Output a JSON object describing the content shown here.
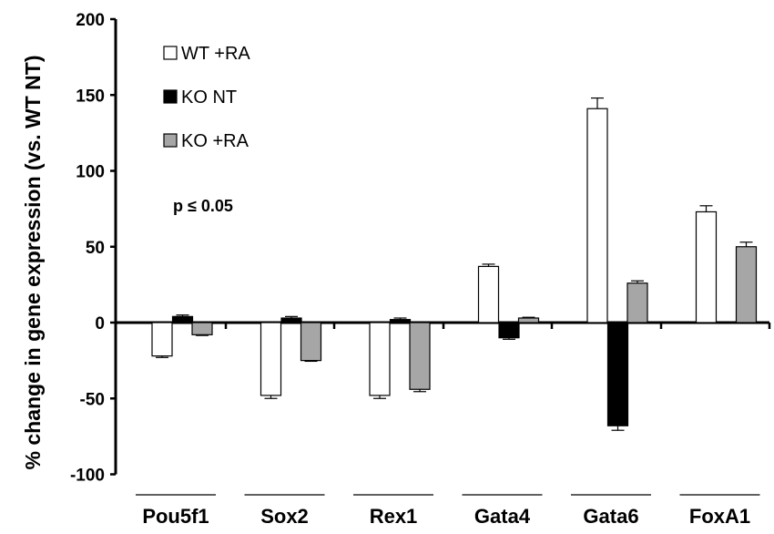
{
  "chart_data": {
    "type": "bar",
    "ylabel": "% change in gene expression (vs. WT NT)",
    "ylim": [
      -100,
      200
    ],
    "yticks": [
      200,
      150,
      100,
      50,
      0,
      -50,
      -100
    ],
    "categories": [
      "Pou5f1",
      "Sox2",
      "Rex1",
      "Gata4",
      "Gata6",
      "FoxA1"
    ],
    "series": [
      {
        "name": "WT +RA",
        "color": "#ffffff",
        "values": [
          -22,
          -48,
          -48,
          37,
          141,
          73
        ],
        "errors": [
          1,
          2,
          2,
          1.5,
          7,
          4
        ]
      },
      {
        "name": "KO NT",
        "color": "#000000",
        "values": [
          4,
          3,
          2,
          -10,
          -68,
          0
        ],
        "errors": [
          1,
          1,
          1,
          1,
          3,
          0
        ]
      },
      {
        "name": "KO +RA",
        "color": "#a6a6a6",
        "values": [
          -8,
          -25,
          -44,
          3,
          26,
          50
        ],
        "errors": [
          0.5,
          0.5,
          1.5,
          0.5,
          1.5,
          3
        ]
      }
    ],
    "annotation": "p ≤ 0.05",
    "legend_position": "top-left",
    "grid": false
  }
}
